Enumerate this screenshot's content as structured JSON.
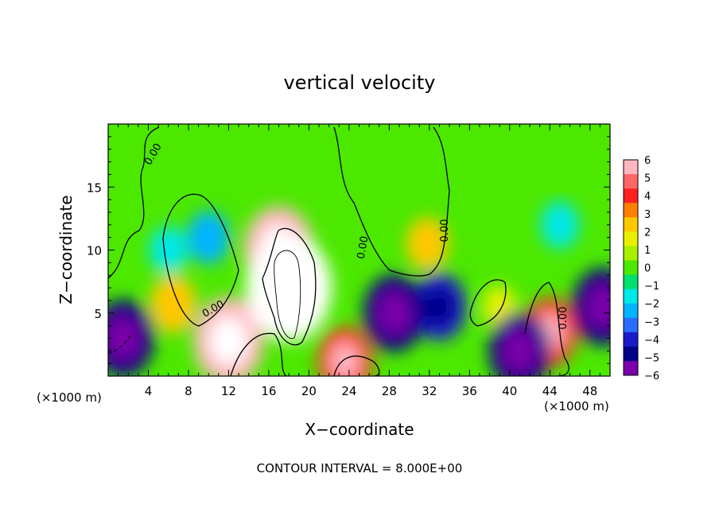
{
  "chart_data": {
    "type": "heatmap",
    "title": "vertical velocity",
    "xlabel": "X−coordinate",
    "ylabel": "Z−coordinate",
    "x_unit_left": "(×1000 m)",
    "x_unit_right": "(×1000 m)",
    "footer": "CONTOUR INTERVAL = 8.000E+00",
    "contour_label": "0.00",
    "xlim": [
      0,
      50
    ],
    "ylim": [
      0,
      20
    ],
    "x_ticks": [
      4,
      8,
      12,
      16,
      20,
      24,
      28,
      32,
      36,
      40,
      44,
      48
    ],
    "x_tick_labels": [
      "4",
      "8",
      "12",
      "16",
      "20",
      "24",
      "28",
      "32",
      "36",
      "40",
      "44",
      "48"
    ],
    "y_ticks": [
      5,
      10,
      15
    ],
    "y_tick_labels": [
      "5",
      "10",
      "15"
    ],
    "colorbar": {
      "range": [
        -6,
        6
      ],
      "ticks": [
        6,
        5,
        4,
        3,
        2,
        1,
        0,
        -1,
        -2,
        -3,
        -4,
        -5,
        -6
      ],
      "tick_labels": [
        "6",
        "5",
        "4",
        "3",
        "2",
        "1",
        "0",
        "−1",
        "−2",
        "−3",
        "−4",
        "−5",
        "−6"
      ],
      "colors": [
        "#ffb6c1",
        "#ff6666",
        "#ff2020",
        "#ff7f00",
        "#ffc800",
        "#e8f000",
        "#a8f000",
        "#4ce800",
        "#00e070",
        "#00e8e8",
        "#00b4ff",
        "#2a6cff",
        "#1a1acc",
        "#000088",
        "#7a00aa"
      ]
    },
    "features": [
      {
        "x": 18,
        "z": 7,
        "value": 8
      },
      {
        "x": 17,
        "z": 10,
        "value": 6
      },
      {
        "x": 12,
        "z": 2.8,
        "value": 6
      },
      {
        "x": 44,
        "z": 3.5,
        "value": 4
      },
      {
        "x": 23.6,
        "z": 1.2,
        "value": 4
      },
      {
        "x": 31.8,
        "z": 10.5,
        "value": 2.5
      },
      {
        "x": 6.5,
        "z": 5.7,
        "value": 3
      },
      {
        "x": 39,
        "z": 5.5,
        "value": 1.5
      },
      {
        "x": 1.5,
        "z": 3,
        "value": -5
      },
      {
        "x": 28.5,
        "z": 5,
        "value": -5
      },
      {
        "x": 33,
        "z": 5.5,
        "value": -4
      },
      {
        "x": 41,
        "z": 2,
        "value": -5
      },
      {
        "x": 49.3,
        "z": 5.5,
        "value": -5
      },
      {
        "x": 10,
        "z": 11,
        "value": -2.5
      },
      {
        "x": 45,
        "z": 12,
        "value": -2
      },
      {
        "x": 6,
        "z": 10,
        "value": -2
      }
    ]
  }
}
